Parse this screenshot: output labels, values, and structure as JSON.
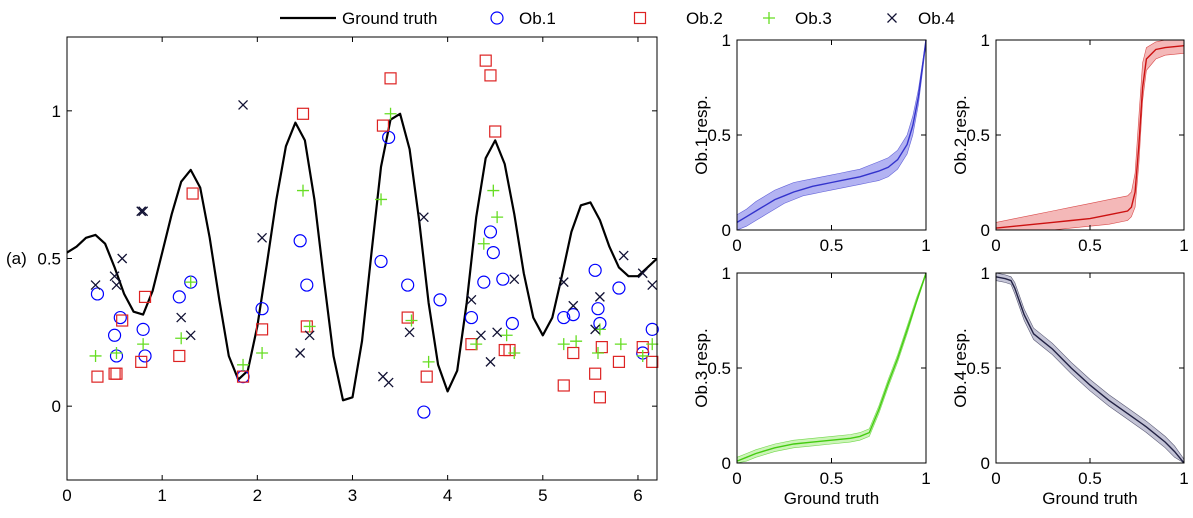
{
  "panel_label": "(a)",
  "legend": {
    "entries": [
      {
        "label": "Ground truth",
        "marker": "line",
        "color": "#000000"
      },
      {
        "label": "Ob.1",
        "marker": "circle",
        "color": "#0000ff"
      },
      {
        "label": "Ob.2",
        "marker": "square",
        "color": "#dd2222"
      },
      {
        "label": "Ob.3",
        "marker": "plus",
        "color": "#66dd22"
      },
      {
        "label": "Ob.4",
        "marker": "x",
        "color": "#111133"
      }
    ]
  },
  "chart_data": [
    {
      "id": "main",
      "type": "scatter",
      "xlim": [
        0,
        6.2
      ],
      "ylim": [
        -0.25,
        1.25
      ],
      "xticks": [
        0,
        1,
        2,
        3,
        4,
        5,
        6
      ],
      "yticks": [
        0,
        0.5,
        1
      ],
      "xtick_labels": [
        "0",
        "1",
        "2",
        "3",
        "4",
        "5",
        "6"
      ],
      "ytick_labels": [
        "0",
        "0.5",
        "1"
      ],
      "ground_truth": {
        "name": "Ground truth",
        "x": [
          0,
          0.1,
          0.2,
          0.3,
          0.4,
          0.5,
          0.6,
          0.7,
          0.8,
          0.9,
          1.0,
          1.1,
          1.2,
          1.3,
          1.4,
          1.5,
          1.6,
          1.7,
          1.8,
          1.9,
          2.0,
          2.1,
          2.2,
          2.3,
          2.4,
          2.5,
          2.6,
          2.7,
          2.8,
          2.9,
          3.0,
          3.1,
          3.2,
          3.3,
          3.4,
          3.5,
          3.6,
          3.7,
          3.8,
          3.9,
          4.0,
          4.1,
          4.2,
          4.3,
          4.4,
          4.5,
          4.6,
          4.7,
          4.8,
          4.9,
          5.0,
          5.1,
          5.2,
          5.3,
          5.4,
          5.5,
          5.6,
          5.7,
          5.8,
          5.9,
          6.0,
          6.1,
          6.2
        ],
        "y": [
          0.52,
          0.54,
          0.57,
          0.58,
          0.55,
          0.47,
          0.38,
          0.32,
          0.31,
          0.39,
          0.52,
          0.65,
          0.76,
          0.8,
          0.74,
          0.57,
          0.36,
          0.17,
          0.09,
          0.12,
          0.27,
          0.48,
          0.7,
          0.88,
          0.96,
          0.9,
          0.7,
          0.43,
          0.17,
          0.02,
          0.03,
          0.22,
          0.52,
          0.81,
          0.97,
          0.99,
          0.87,
          0.63,
          0.35,
          0.14,
          0.05,
          0.12,
          0.35,
          0.64,
          0.84,
          0.9,
          0.82,
          0.65,
          0.45,
          0.3,
          0.24,
          0.3,
          0.44,
          0.59,
          0.68,
          0.69,
          0.63,
          0.54,
          0.47,
          0.44,
          0.44,
          0.47,
          0.5
        ]
      },
      "series": [
        {
          "name": "Ob.1",
          "marker": "circle",
          "color": "#0000ff",
          "points": [
            [
              0.32,
              0.38
            ],
            [
              0.5,
              0.24
            ],
            [
              0.52,
              0.17
            ],
            [
              0.56,
              0.3
            ],
            [
              0.8,
              0.26
            ],
            [
              0.82,
              0.17
            ],
            [
              1.18,
              0.37
            ],
            [
              1.3,
              0.42
            ],
            [
              1.85,
              0.1
            ],
            [
              2.05,
              0.33
            ],
            [
              2.45,
              0.56
            ],
            [
              2.52,
              0.41
            ],
            [
              3.3,
              0.49
            ],
            [
              3.38,
              0.91
            ],
            [
              3.58,
              0.41
            ],
            [
              3.75,
              -0.02
            ],
            [
              3.92,
              0.36
            ],
            [
              4.25,
              0.3
            ],
            [
              4.38,
              0.42
            ],
            [
              4.45,
              0.59
            ],
            [
              4.48,
              0.52
            ],
            [
              4.58,
              0.43
            ],
            [
              4.68,
              0.28
            ],
            [
              5.22,
              0.3
            ],
            [
              5.32,
              0.31
            ],
            [
              5.55,
              0.46
            ],
            [
              5.58,
              0.33
            ],
            [
              5.6,
              0.28
            ],
            [
              5.8,
              0.4
            ],
            [
              6.05,
              0.18
            ],
            [
              6.15,
              0.26
            ]
          ]
        },
        {
          "name": "Ob.2",
          "marker": "square",
          "color": "#dd2222",
          "points": [
            [
              0.32,
              0.1
            ],
            [
              0.5,
              0.11
            ],
            [
              0.52,
              0.11
            ],
            [
              0.58,
              0.29
            ],
            [
              0.78,
              0.15
            ],
            [
              0.82,
              0.37
            ],
            [
              1.18,
              0.17
            ],
            [
              1.32,
              0.72
            ],
            [
              1.85,
              0.1
            ],
            [
              2.05,
              0.26
            ],
            [
              2.48,
              0.99
            ],
            [
              2.52,
              0.27
            ],
            [
              3.32,
              0.95
            ],
            [
              3.4,
              1.11
            ],
            [
              3.58,
              0.3
            ],
            [
              3.78,
              0.1
            ],
            [
              4.25,
              0.21
            ],
            [
              4.4,
              1.17
            ],
            [
              4.45,
              1.12
            ],
            [
              4.5,
              0.93
            ],
            [
              4.6,
              0.19
            ],
            [
              4.65,
              0.19
            ],
            [
              5.22,
              0.07
            ],
            [
              5.32,
              0.18
            ],
            [
              5.55,
              0.11
            ],
            [
              5.6,
              0.03
            ],
            [
              5.62,
              0.2
            ],
            [
              5.8,
              0.15
            ],
            [
              6.05,
              0.2
            ],
            [
              6.15,
              0.15
            ]
          ]
        },
        {
          "name": "Ob.3",
          "marker": "plus",
          "color": "#66dd22",
          "points": [
            [
              0.3,
              0.17
            ],
            [
              0.52,
              0.18
            ],
            [
              0.8,
              0.21
            ],
            [
              1.2,
              0.23
            ],
            [
              1.3,
              0.42
            ],
            [
              1.85,
              0.14
            ],
            [
              2.05,
              0.18
            ],
            [
              2.48,
              0.73
            ],
            [
              2.55,
              0.27
            ],
            [
              3.3,
              0.7
            ],
            [
              3.4,
              0.99
            ],
            [
              3.62,
              0.29
            ],
            [
              3.8,
              0.15
            ],
            [
              4.3,
              0.21
            ],
            [
              4.38,
              0.55
            ],
            [
              4.48,
              0.73
            ],
            [
              4.52,
              0.64
            ],
            [
              4.62,
              0.24
            ],
            [
              4.7,
              0.18
            ],
            [
              5.22,
              0.21
            ],
            [
              5.35,
              0.22
            ],
            [
              5.58,
              0.18
            ],
            [
              5.6,
              0.26
            ],
            [
              5.82,
              0.21
            ],
            [
              6.05,
              0.17
            ],
            [
              6.15,
              0.21
            ]
          ]
        },
        {
          "name": "Ob.4",
          "marker": "x",
          "color": "#111133",
          "points": [
            [
              0.3,
              0.41
            ],
            [
              0.52,
              0.41
            ],
            [
              0.5,
              0.44
            ],
            [
              0.58,
              0.5
            ],
            [
              0.78,
              0.66
            ],
            [
              0.8,
              0.66
            ],
            [
              1.2,
              0.3
            ],
            [
              1.3,
              0.24
            ],
            [
              1.85,
              1.02
            ],
            [
              2.05,
              0.57
            ],
            [
              2.45,
              0.18
            ],
            [
              2.55,
              0.24
            ],
            [
              3.32,
              0.1
            ],
            [
              3.38,
              0.08
            ],
            [
              3.6,
              0.25
            ],
            [
              3.75,
              0.64
            ],
            [
              4.25,
              0.36
            ],
            [
              4.35,
              0.24
            ],
            [
              4.45,
              0.15
            ],
            [
              4.52,
              0.25
            ],
            [
              4.7,
              0.43
            ],
            [
              5.22,
              0.42
            ],
            [
              5.32,
              0.34
            ],
            [
              5.55,
              0.26
            ],
            [
              5.6,
              0.37
            ],
            [
              5.85,
              0.51
            ],
            [
              6.05,
              0.45
            ],
            [
              6.15,
              0.41
            ]
          ]
        }
      ]
    },
    {
      "id": "ob1",
      "type": "area",
      "ylabel": "Ob.1 resp.",
      "xlabel": "",
      "color": "#3333cc",
      "band_color": "#9999ee",
      "xlim": [
        0,
        1
      ],
      "ylim": [
        0,
        1
      ],
      "xticks": [
        0,
        0.5,
        1
      ],
      "yticks": [
        0,
        0.5,
        1
      ],
      "xtick_labels": [
        "0",
        "0.5",
        "1"
      ],
      "ytick_labels": [
        "0",
        "0.5",
        "1"
      ],
      "x": [
        0,
        0.05,
        0.1,
        0.15,
        0.2,
        0.25,
        0.3,
        0.35,
        0.4,
        0.45,
        0.5,
        0.55,
        0.6,
        0.65,
        0.7,
        0.75,
        0.8,
        0.85,
        0.9,
        0.93,
        0.96,
        1.0
      ],
      "mean": [
        0.04,
        0.07,
        0.1,
        0.13,
        0.16,
        0.18,
        0.2,
        0.215,
        0.23,
        0.24,
        0.25,
        0.26,
        0.27,
        0.28,
        0.295,
        0.31,
        0.33,
        0.37,
        0.45,
        0.55,
        0.7,
        1.0
      ],
      "lower": [
        0.0,
        0.02,
        0.05,
        0.08,
        0.11,
        0.14,
        0.16,
        0.18,
        0.19,
        0.2,
        0.21,
        0.22,
        0.23,
        0.24,
        0.25,
        0.26,
        0.28,
        0.32,
        0.4,
        0.5,
        0.66,
        0.98
      ],
      "upper": [
        0.08,
        0.11,
        0.15,
        0.18,
        0.21,
        0.23,
        0.25,
        0.26,
        0.27,
        0.28,
        0.29,
        0.3,
        0.31,
        0.32,
        0.34,
        0.36,
        0.38,
        0.42,
        0.5,
        0.6,
        0.74,
        1.0
      ]
    },
    {
      "id": "ob2",
      "type": "area",
      "ylabel": "Ob.2 resp.",
      "xlabel": "",
      "color": "#cc1111",
      "band_color": "#f0a0a0",
      "xlim": [
        0,
        1
      ],
      "ylim": [
        0,
        1
      ],
      "xticks": [
        0,
        0.5,
        1
      ],
      "yticks": [
        0,
        0.5,
        1
      ],
      "xtick_labels": [
        "0",
        "0.5",
        "1"
      ],
      "ytick_labels": [
        "0",
        "0.5",
        "1"
      ],
      "x": [
        0,
        0.1,
        0.2,
        0.3,
        0.4,
        0.5,
        0.6,
        0.7,
        0.72,
        0.74,
        0.76,
        0.78,
        0.8,
        0.85,
        0.9,
        1.0
      ],
      "mean": [
        0.01,
        0.02,
        0.03,
        0.04,
        0.05,
        0.06,
        0.08,
        0.1,
        0.12,
        0.2,
        0.45,
        0.75,
        0.9,
        0.95,
        0.96,
        0.97
      ],
      "lower": [
        0.0,
        0.0,
        0.0,
        0.0,
        0.01,
        0.02,
        0.03,
        0.05,
        0.07,
        0.12,
        0.35,
        0.68,
        0.84,
        0.9,
        0.92,
        0.93
      ],
      "upper": [
        0.04,
        0.06,
        0.08,
        0.1,
        0.12,
        0.14,
        0.16,
        0.18,
        0.2,
        0.3,
        0.6,
        0.88,
        0.96,
        0.99,
        1.0,
        1.0
      ]
    },
    {
      "id": "ob3",
      "type": "area",
      "ylabel": "Ob.3 resp.",
      "xlabel": "Ground truth",
      "color": "#44cc11",
      "band_color": "#bbf0a0",
      "xlim": [
        0,
        1
      ],
      "ylim": [
        0,
        1
      ],
      "xticks": [
        0,
        0.5,
        1
      ],
      "yticks": [
        0,
        0.5,
        1
      ],
      "xtick_labels": [
        "0",
        "0.5",
        "1"
      ],
      "ytick_labels": [
        "0",
        "0.5",
        "1"
      ],
      "x": [
        0,
        0.05,
        0.1,
        0.2,
        0.3,
        0.4,
        0.5,
        0.6,
        0.65,
        0.7,
        0.75,
        0.8,
        0.85,
        0.9,
        0.95,
        1.0
      ],
      "mean": [
        0.01,
        0.03,
        0.05,
        0.08,
        0.1,
        0.11,
        0.12,
        0.13,
        0.14,
        0.16,
        0.28,
        0.42,
        0.55,
        0.7,
        0.85,
        1.0
      ],
      "lower": [
        0.0,
        0.01,
        0.03,
        0.06,
        0.08,
        0.09,
        0.1,
        0.11,
        0.12,
        0.14,
        0.26,
        0.4,
        0.53,
        0.68,
        0.84,
        0.99
      ],
      "upper": [
        0.03,
        0.05,
        0.07,
        0.1,
        0.12,
        0.13,
        0.14,
        0.15,
        0.16,
        0.18,
        0.3,
        0.44,
        0.57,
        0.72,
        0.87,
        1.0
      ]
    },
    {
      "id": "ob4",
      "type": "area",
      "ylabel": "Ob.4 resp.",
      "xlabel": "Ground truth",
      "color": "#222244",
      "band_color": "#b0b0c8",
      "xlim": [
        0,
        1
      ],
      "ylim": [
        0,
        1
      ],
      "xticks": [
        0,
        0.5,
        1
      ],
      "yticks": [
        0,
        0.5,
        1
      ],
      "xtick_labels": [
        "0",
        "0.5",
        "1"
      ],
      "ytick_labels": [
        "0",
        "0.5",
        "1"
      ],
      "x": [
        0,
        0.05,
        0.08,
        0.1,
        0.15,
        0.2,
        0.25,
        0.3,
        0.35,
        0.4,
        0.5,
        0.6,
        0.7,
        0.8,
        0.9,
        0.95,
        1.0
      ],
      "mean": [
        0.98,
        0.97,
        0.96,
        0.92,
        0.78,
        0.68,
        0.64,
        0.6,
        0.55,
        0.5,
        0.41,
        0.33,
        0.26,
        0.19,
        0.11,
        0.06,
        0.0
      ],
      "lower": [
        0.96,
        0.95,
        0.94,
        0.89,
        0.75,
        0.65,
        0.61,
        0.57,
        0.52,
        0.47,
        0.38,
        0.3,
        0.23,
        0.16,
        0.08,
        0.03,
        0.0
      ],
      "upper": [
        1.0,
        0.99,
        0.98,
        0.95,
        0.81,
        0.71,
        0.67,
        0.63,
        0.58,
        0.53,
        0.44,
        0.36,
        0.29,
        0.22,
        0.14,
        0.09,
        0.02
      ]
    }
  ]
}
